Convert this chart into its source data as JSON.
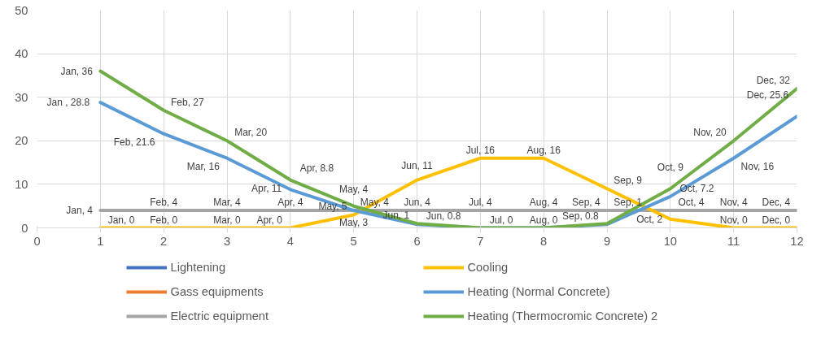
{
  "chart_data": {
    "type": "line",
    "x": [
      1,
      2,
      3,
      4,
      5,
      6,
      7,
      8,
      9,
      10,
      11,
      12
    ],
    "xlim": [
      0,
      12
    ],
    "xticks": [
      0,
      1,
      2,
      3,
      4,
      5,
      6,
      7,
      8,
      9,
      10,
      11,
      12
    ],
    "ylim": [
      0,
      50
    ],
    "yticks": [
      0,
      10,
      20,
      30,
      40,
      50
    ],
    "grid": true,
    "legend": "bottom",
    "line_style": "solid",
    "marker": "none",
    "series": [
      {
        "name": "Lightening",
        "color": "#4472c4",
        "values": [
          null,
          null,
          null,
          null,
          null,
          null,
          null,
          null,
          null,
          null,
          null,
          null
        ]
      },
      {
        "name": "Gass equipments",
        "color": "#ed7d31",
        "values": [
          null,
          null,
          null,
          null,
          null,
          null,
          null,
          null,
          null,
          null,
          null,
          null
        ]
      },
      {
        "name": "Electric equipment",
        "color": "#a5a5a5",
        "values": [
          4,
          4,
          4,
          4,
          4,
          4,
          4,
          4,
          4,
          4,
          4,
          4
        ],
        "value_labels": [
          "Jan, 4",
          "Feb, 4",
          "Mar, 4",
          "Apr, 4",
          "May, 4",
          "Jun, 4",
          "Jul, 4",
          "Aug, 4",
          "Sep, 4",
          "Oct, 4",
          "Nov, 4",
          "Dec, 4"
        ]
      },
      {
        "name": "Cooling",
        "color": "#ffc000",
        "values": [
          0,
          0,
          0,
          0,
          3,
          11,
          16,
          16,
          9,
          2,
          0,
          0
        ],
        "value_labels": [
          "Jan, 0",
          "Feb, 0",
          "Mar, 0",
          "Apr, 0",
          "May, 3",
          "Jun, 11",
          "Jul, 16",
          "Aug, 16",
          "Sep, 9",
          "Oct, 2",
          "Nov, 0",
          "Dec, 0"
        ]
      },
      {
        "name": "Heating (Normal Concrete)",
        "color": "#5b9bd5",
        "values": [
          28.8,
          21.6,
          16,
          8.8,
          4,
          0.8,
          0,
          0,
          0.8,
          7.2,
          16,
          25.6
        ],
        "value_labels": [
          "Jan , 28.8",
          "Feb, 21.6",
          "Mar, 16",
          "Apr, 8.8",
          "May, 4",
          "Jun, 0.8",
          null,
          null,
          "Sep, 0.8",
          "Oct, 7.2",
          "Nov, 16",
          "Dec, 25.6"
        ]
      },
      {
        "name": "Heating (Thermocromic Concrete) 2",
        "color": "#70ad47",
        "values": [
          36,
          27,
          20,
          11,
          5,
          1,
          0,
          0,
          1,
          9,
          20,
          32
        ],
        "value_labels": [
          "Jan, 36",
          "Feb, 27",
          "Mar, 20",
          "Apr, 11",
          "May, 5",
          "Jun, 1",
          "Jul, 0",
          "Aug, 0",
          "Sep, 1",
          "Oct, 9",
          "Nov, 20",
          "Dec, 32"
        ]
      }
    ]
  }
}
